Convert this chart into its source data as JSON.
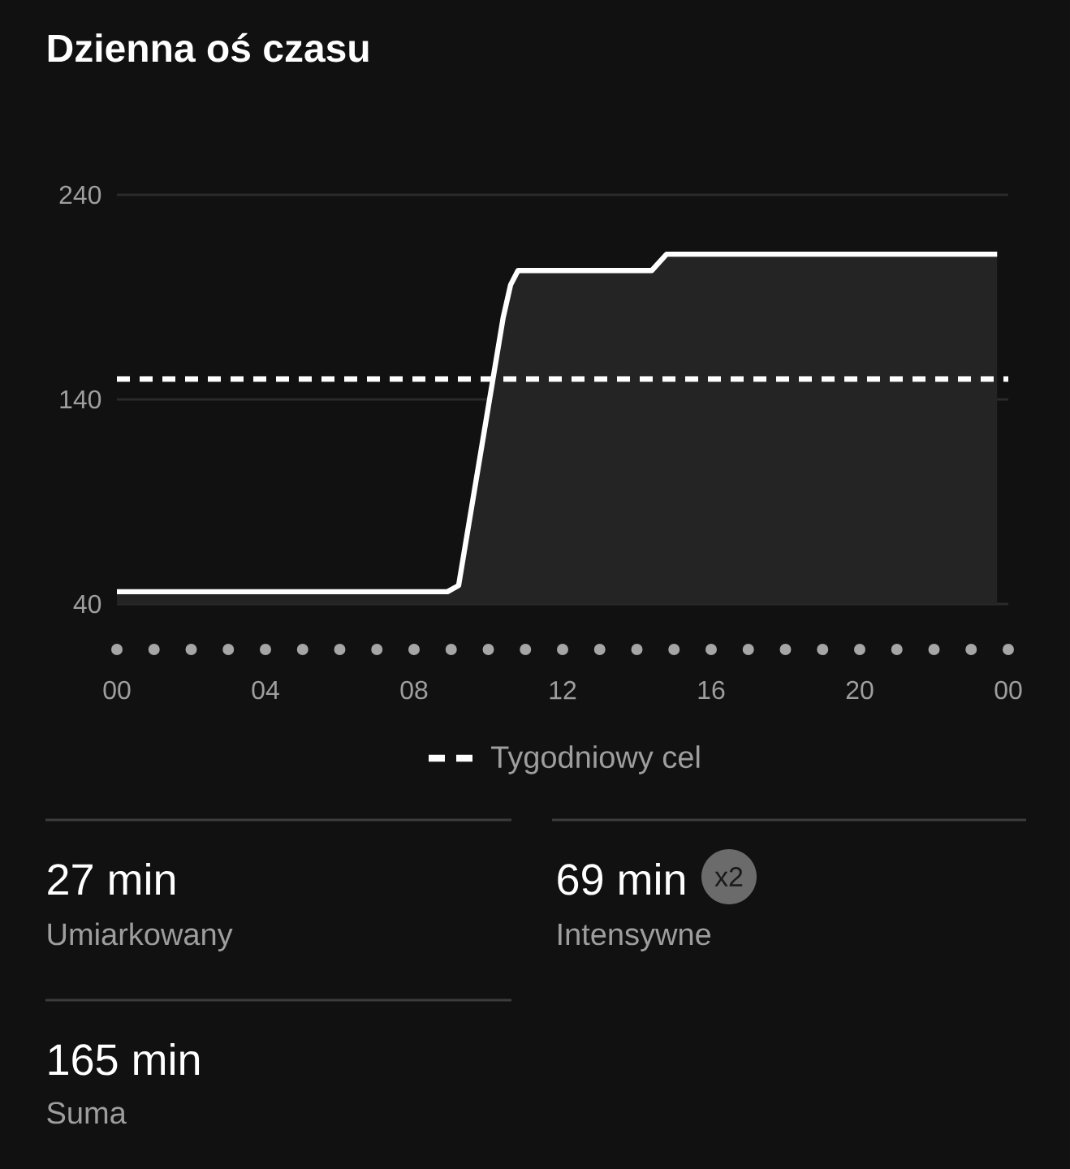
{
  "chart_data": [
    {
      "type": "area",
      "title": "Dzienna oś czasu",
      "x": [
        0,
        8.9,
        9.2,
        10.4,
        10.6,
        10.8,
        14.4,
        14.8,
        23.7
      ],
      "values": [
        46,
        46,
        49,
        180,
        196,
        203,
        203,
        211,
        211
      ],
      "color": "#ffffff",
      "xlim": [
        0,
        24
      ],
      "ylim": [
        40,
        240
      ],
      "xticks": [
        {
          "value": 0,
          "label": "00"
        },
        {
          "value": 4,
          "label": "04"
        },
        {
          "value": 8,
          "label": "08"
        },
        {
          "value": 12,
          "label": "12"
        },
        {
          "value": 16,
          "label": "16"
        },
        {
          "value": 20,
          "label": "20"
        },
        {
          "value": 24,
          "label": "00"
        }
      ],
      "yticks": [
        40,
        140,
        240
      ],
      "grid": "y",
      "legend": "bottom",
      "ref_lines": [
        {
          "axis": "y",
          "value": 150,
          "label": "Tygodniowy cel",
          "color": "#ffffff",
          "line_style": "dashed"
        }
      ]
    },
    {
      "type": "other",
      "annotations": [
        "27 min",
        "Umiarkowany",
        "69 min",
        "x2",
        "Intensywne",
        "165 min",
        "Suma"
      ]
    }
  ]
}
